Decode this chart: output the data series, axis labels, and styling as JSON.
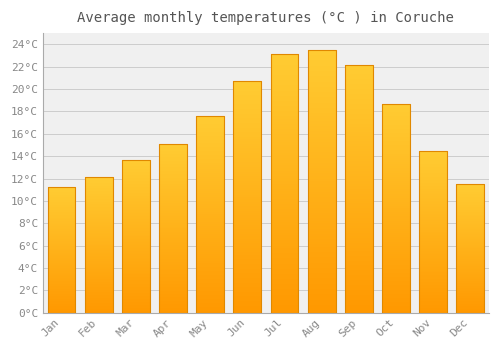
{
  "title": "Average monthly temperatures (°C ) in Coruche",
  "months": [
    "Jan",
    "Feb",
    "Mar",
    "Apr",
    "May",
    "Jun",
    "Jul",
    "Aug",
    "Sep",
    "Oct",
    "Nov",
    "Dec"
  ],
  "values": [
    11.2,
    12.1,
    13.7,
    15.1,
    17.6,
    20.7,
    23.1,
    23.5,
    22.2,
    18.7,
    14.5,
    11.5
  ],
  "bar_color_top": "#FFB300",
  "bar_color_bottom": "#FF9800",
  "bar_edge_color": "#E08800",
  "background_color": "#ffffff",
  "plot_bg_color": "#f0f0f0",
  "grid_color": "#cccccc",
  "ylim": [
    0,
    25
  ],
  "yticks": [
    0,
    2,
    4,
    6,
    8,
    10,
    12,
    14,
    16,
    18,
    20,
    22,
    24
  ],
  "title_fontsize": 10,
  "tick_fontsize": 8,
  "tick_color": "#888888",
  "title_color": "#555555"
}
